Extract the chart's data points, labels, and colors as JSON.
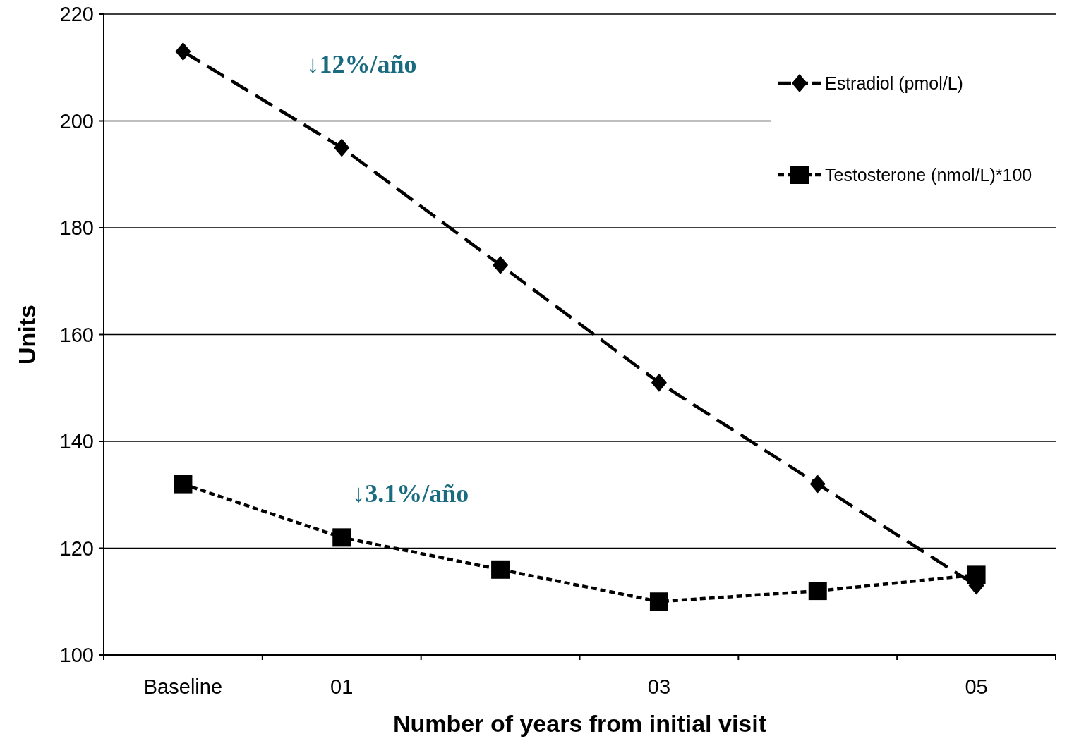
{
  "chart_data": {
    "type": "line",
    "ylabel": "Units",
    "xlabel": "Number of years from initial visit",
    "categories": [
      "Baseline",
      "01",
      null,
      "03",
      null,
      "05"
    ],
    "series": [
      {
        "name": "Estradiol (pmol/L)",
        "color": "#000000",
        "values": [
          213,
          195,
          173,
          151,
          132,
          113
        ],
        "marker": "diamond",
        "line_style": "dashed"
      },
      {
        "name": "Testosterone (nmol/L)*100",
        "color": "#000000",
        "values": [
          132,
          122,
          116,
          110,
          112,
          115
        ],
        "marker": "square",
        "line_style": "dotted"
      }
    ],
    "ylim": [
      100,
      220
    ],
    "yticks": [
      100,
      120,
      140,
      160,
      180,
      200,
      220
    ],
    "grid": "y",
    "legend": "top right",
    "annotations": [
      "↓12%/año",
      "↓3.1%/año"
    ]
  }
}
